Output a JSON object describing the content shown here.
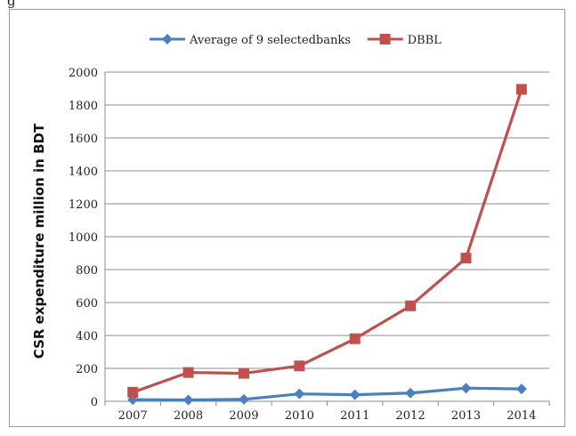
{
  "caption_fragment": "g",
  "chart_data": {
    "type": "line",
    "categories": [
      "2007",
      "2008",
      "2009",
      "2010",
      "2011",
      "2012",
      "2013",
      "2014"
    ],
    "series": [
      {
        "name": "Average of 9 selectedbanks",
        "values": [
          10,
          8,
          12,
          45,
          40,
          50,
          80,
          75
        ],
        "color": "#4a7fc1",
        "marker": "diamond"
      },
      {
        "name": "DBBL",
        "values": [
          55,
          175,
          170,
          215,
          380,
          580,
          870,
          1895
        ],
        "color": "#c0504d",
        "marker": "square"
      }
    ],
    "ylabel": "CSR expenditure million in BDT",
    "xlabel": "",
    "ylim": [
      0,
      2000
    ],
    "yticks": [
      0,
      200,
      400,
      600,
      800,
      1000,
      1200,
      1400,
      1600,
      1800,
      2000
    ],
    "grid": true,
    "legend_position": "top"
  }
}
